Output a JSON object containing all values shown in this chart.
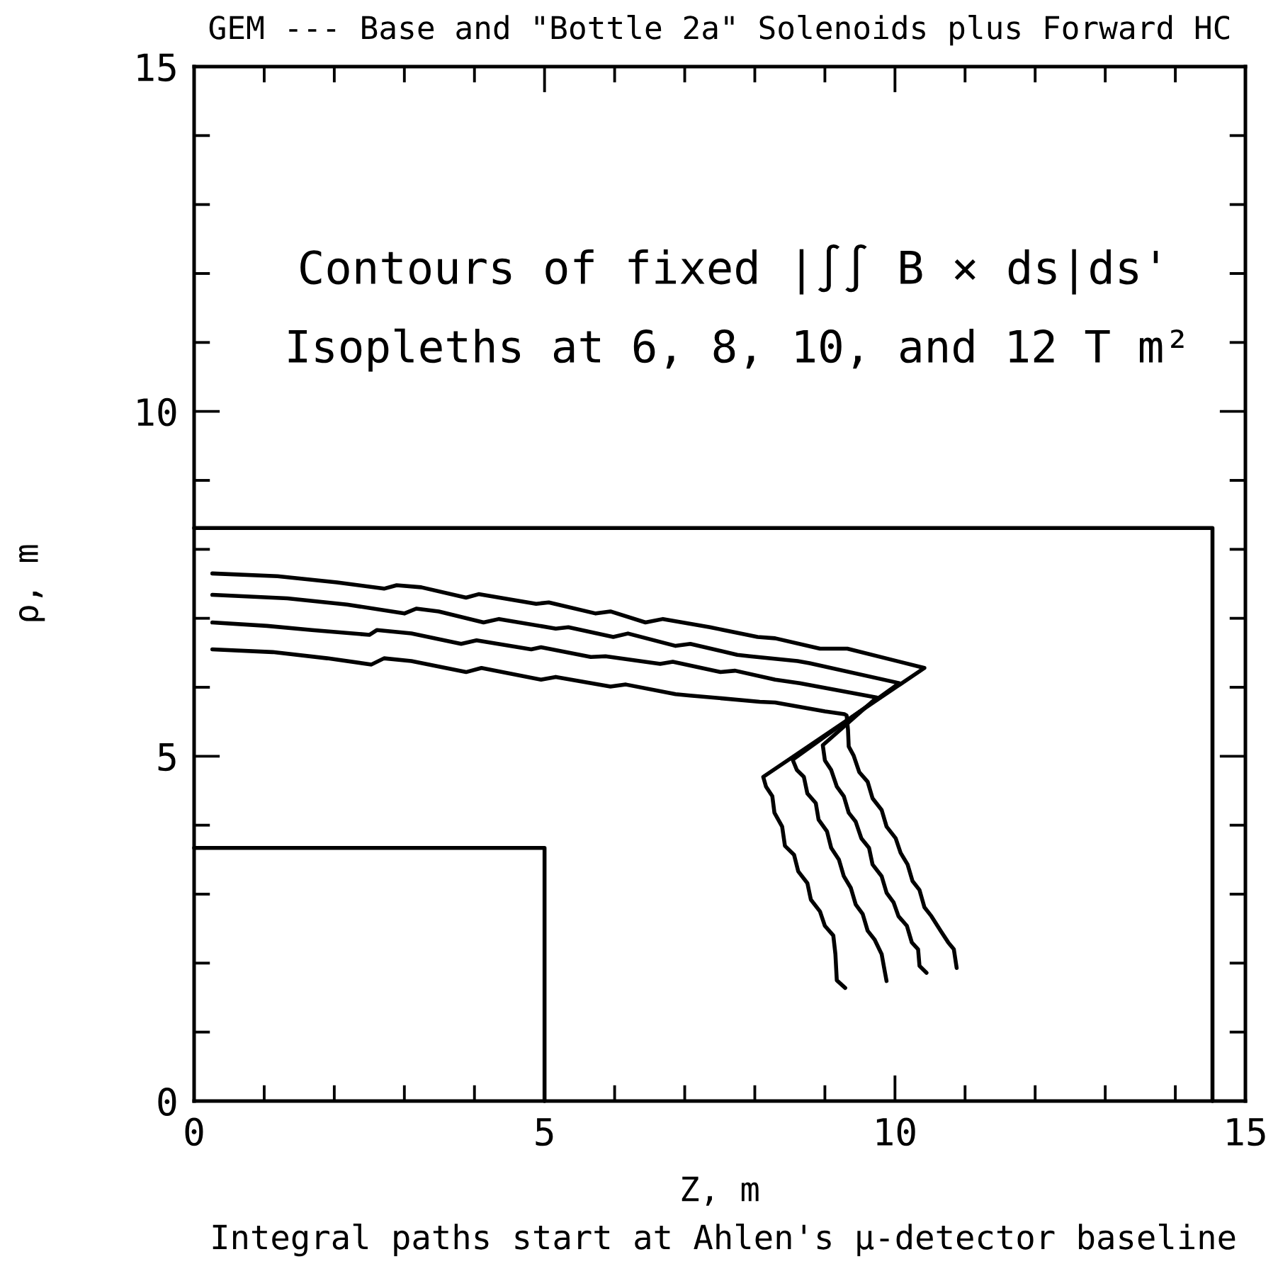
{
  "chart_data": {
    "type": "line",
    "title": "GEM --- Base and \"Bottle 2a\" Solenoids plus Forward HC",
    "xlabel": "Z, m",
    "ylabel": "ρ, m",
    "annotations": [
      "Contours of fixed |∫∫ B × ds|ds'",
      "Isopleths at 6, 8, 10, and 12 T m²",
      "Integral paths start at Ahlen's μ-detector baseline"
    ],
    "xlim": [
      0,
      15
    ],
    "ylim": [
      0,
      15
    ],
    "xticks": [
      0,
      {
        "value": 1,
        "label": null
      },
      {
        "value": 2,
        "label": null
      },
      {
        "value": 3,
        "label": null
      },
      {
        "value": 4,
        "label": null
      },
      5,
      {
        "value": 6,
        "label": null
      },
      {
        "value": 7,
        "label": null
      },
      {
        "value": 8,
        "label": null
      },
      {
        "value": 9,
        "label": null
      },
      10,
      {
        "value": 11,
        "label": null
      },
      {
        "value": 12,
        "label": null
      },
      {
        "value": 13,
        "label": null
      },
      {
        "value": 14,
        "label": null
      },
      15
    ],
    "yticks": [
      0,
      {
        "value": 1,
        "label": null
      },
      {
        "value": 2,
        "label": null
      },
      {
        "value": 3,
        "label": null
      },
      {
        "value": 4,
        "label": null
      },
      5,
      {
        "value": 6,
        "label": null
      },
      {
        "value": 7,
        "label": null
      },
      {
        "value": 8,
        "label": null
      },
      {
        "value": 9,
        "label": null
      },
      10,
      {
        "value": 11,
        "label": null
      },
      {
        "value": 12,
        "label": null
      },
      {
        "value": 13,
        "label": null
      },
      {
        "value": 14,
        "label": null
      },
      15
    ],
    "series": [
      {
        "color": "#000000",
        "x": [
          0.26,
          1.19,
          2.04,
          2.71,
          2.89,
          3.24,
          3.88,
          4.06,
          4.88,
          5.06,
          5.73,
          5.94,
          6.44,
          6.69,
          7.36,
          8.04,
          8.29,
          8.93,
          9.32,
          10.42,
          8.12,
          8.16,
          8.25,
          8.28,
          8.39,
          8.43,
          8.56,
          8.62,
          8.75,
          8.8,
          8.93,
          9.0,
          9.12,
          9.15,
          9.17,
          9.29
        ],
        "values": [
          7.65,
          7.61,
          7.52,
          7.43,
          7.48,
          7.45,
          7.3,
          7.35,
          7.21,
          7.23,
          7.07,
          7.1,
          6.94,
          6.99,
          6.87,
          6.73,
          6.71,
          6.56,
          6.56,
          6.28,
          4.7,
          4.56,
          4.42,
          4.18,
          3.98,
          3.7,
          3.57,
          3.33,
          3.16,
          2.92,
          2.75,
          2.54,
          2.4,
          2.13,
          1.75,
          1.64
        ]
      },
      {
        "color": "#000000",
        "x": [
          0.26,
          1.33,
          2.18,
          3.0,
          3.17,
          3.49,
          4.13,
          4.35,
          5.16,
          5.34,
          5.98,
          6.19,
          6.87,
          7.08,
          7.75,
          7.93,
          8.61,
          8.78,
          10.06,
          8.54,
          8.6,
          8.7,
          8.75,
          8.87,
          8.91,
          9.03,
          9.09,
          9.2,
          9.27,
          9.37,
          9.44,
          9.54,
          9.61,
          9.71,
          9.81,
          9.84,
          9.88
        ],
        "values": [
          7.34,
          7.29,
          7.2,
          7.07,
          7.14,
          7.1,
          6.94,
          6.99,
          6.85,
          6.87,
          6.73,
          6.78,
          6.6,
          6.63,
          6.47,
          6.45,
          6.38,
          6.35,
          6.06,
          4.95,
          4.8,
          4.7,
          4.46,
          4.32,
          4.08,
          3.91,
          3.67,
          3.5,
          3.26,
          3.09,
          2.85,
          2.71,
          2.47,
          2.34,
          2.13,
          1.96,
          1.74
        ]
      },
      {
        "color": "#000000",
        "x": [
          0.26,
          1.04,
          1.68,
          2.5,
          2.61,
          3.1,
          3.81,
          4.03,
          4.81,
          4.95,
          5.66,
          5.87,
          6.65,
          6.83,
          7.51,
          7.72,
          8.29,
          8.64,
          9.74,
          8.97,
          9.0,
          9.09,
          9.17,
          9.27,
          9.34,
          9.44,
          9.52,
          9.63,
          9.68,
          9.81,
          9.88,
          9.98,
          10.05,
          10.17,
          10.24,
          10.33,
          10.35,
          10.45
        ],
        "values": [
          6.94,
          6.89,
          6.83,
          6.76,
          6.83,
          6.78,
          6.63,
          6.68,
          6.55,
          6.58,
          6.44,
          6.45,
          6.34,
          6.37,
          6.22,
          6.24,
          6.11,
          6.06,
          5.85,
          5.16,
          4.94,
          4.8,
          4.56,
          4.42,
          4.18,
          4.05,
          3.81,
          3.67,
          3.43,
          3.26,
          3.02,
          2.88,
          2.68,
          2.54,
          2.3,
          2.2,
          1.96,
          1.86
        ]
      },
      {
        "color": "#000000",
        "x": [
          0.26,
          1.12,
          1.9,
          2.53,
          2.71,
          3.1,
          3.88,
          4.1,
          4.95,
          5.16,
          5.94,
          6.16,
          6.87,
          7.08,
          8.07,
          8.29,
          9.0,
          9.28,
          9.31,
          9.33,
          9.34,
          9.41,
          9.49,
          9.61,
          9.68,
          9.81,
          9.88,
          10.01,
          10.08,
          10.18,
          10.25,
          10.35,
          10.42,
          10.52,
          10.65,
          10.76,
          10.84,
          10.88
        ],
        "values": [
          6.55,
          6.51,
          6.42,
          6.33,
          6.42,
          6.38,
          6.22,
          6.28,
          6.11,
          6.15,
          6.01,
          6.04,
          5.9,
          5.88,
          5.79,
          5.78,
          5.65,
          5.61,
          5.59,
          5.38,
          5.14,
          5.01,
          4.77,
          4.63,
          4.39,
          4.22,
          3.98,
          3.81,
          3.6,
          3.43,
          3.19,
          3.06,
          2.81,
          2.68,
          2.47,
          2.3,
          2.2,
          1.93
        ]
      },
      {
        "color": "#000000",
        "x": [
          0,
          5.0,
          5.0
        ],
        "values": [
          3.67,
          3.67,
          0
        ]
      },
      {
        "color": "#000000",
        "x": [
          0,
          14.53,
          14.53
        ],
        "values": [
          8.31,
          8.31,
          0
        ]
      }
    ]
  }
}
